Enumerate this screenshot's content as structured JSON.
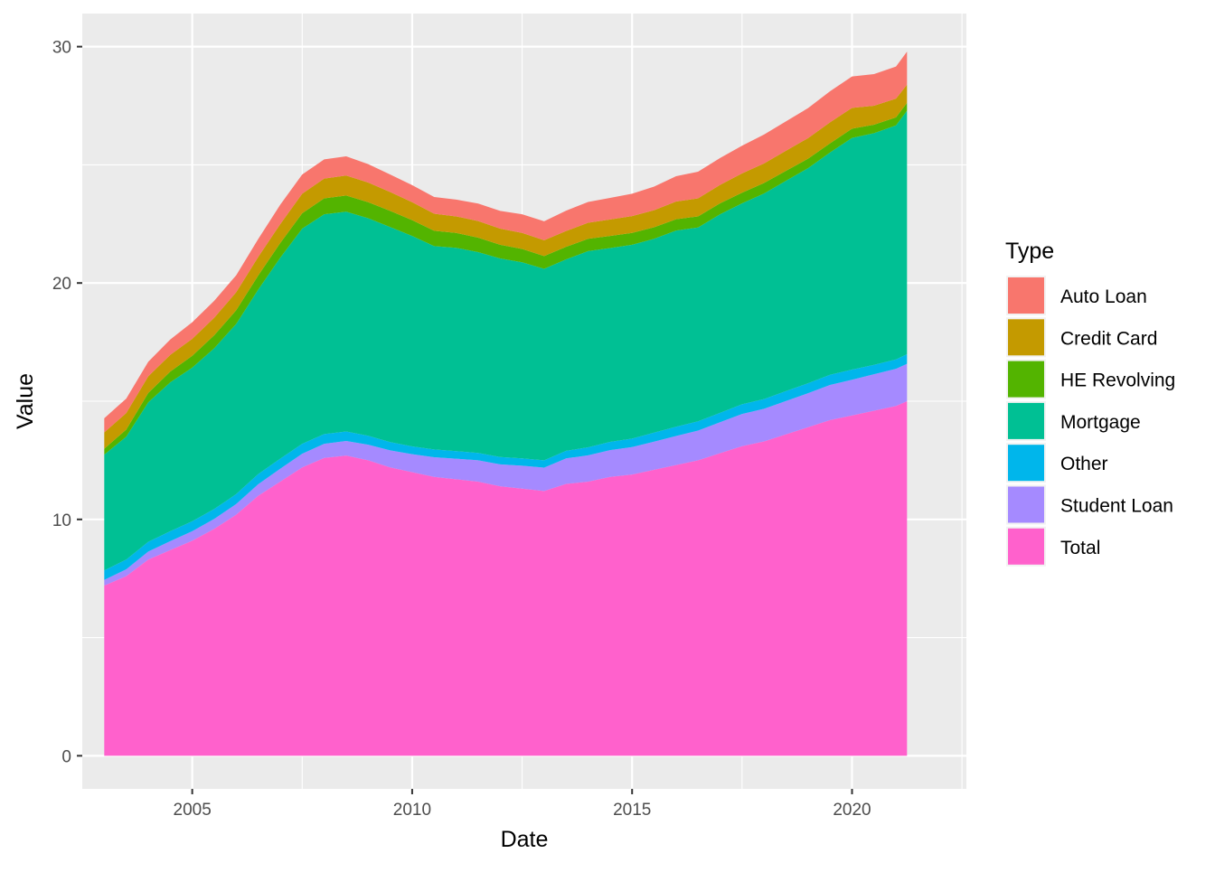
{
  "chart_data": {
    "type": "area",
    "stacked": true,
    "xlabel": "Date",
    "ylabel": "Value",
    "xlim": [
      2002.5,
      2022.6
    ],
    "ylim": [
      -1.4,
      31.4
    ],
    "x_ticks": [
      2005,
      2010,
      2015,
      2020
    ],
    "x_tick_labels": [
      "2005",
      "2010",
      "2015",
      "2020"
    ],
    "y_ticks": [
      0,
      10,
      20,
      30
    ],
    "y_tick_labels": [
      "0",
      "10",
      "20",
      "30"
    ],
    "grid": true,
    "background": "#ebebeb",
    "legend": {
      "title": "Type",
      "position": "right"
    },
    "x": [
      2003.0,
      2003.5,
      2004.0,
      2004.5,
      2005.0,
      2005.5,
      2006.0,
      2006.5,
      2007.0,
      2007.5,
      2008.0,
      2008.5,
      2009.0,
      2009.5,
      2010.0,
      2010.5,
      2011.0,
      2011.5,
      2012.0,
      2012.5,
      2013.0,
      2013.5,
      2014.0,
      2014.5,
      2015.0,
      2015.5,
      2016.0,
      2016.5,
      2017.0,
      2017.5,
      2018.0,
      2018.5,
      2019.0,
      2019.5,
      2020.0,
      2020.5,
      2021.0,
      2021.25
    ],
    "series": [
      {
        "name": "Total",
        "color": "#FF61CC",
        "values": [
          7.2,
          7.6,
          8.3,
          8.7,
          9.1,
          9.6,
          10.2,
          11.0,
          11.6,
          12.2,
          12.6,
          12.7,
          12.5,
          12.2,
          12.0,
          11.8,
          11.7,
          11.6,
          11.4,
          11.3,
          11.2,
          11.5,
          11.6,
          11.8,
          11.9,
          12.1,
          12.3,
          12.5,
          12.8,
          13.1,
          13.3,
          13.6,
          13.9,
          14.2,
          14.4,
          14.6,
          14.8,
          15.0
        ]
      },
      {
        "name": "Student Loan",
        "color": "#A58AFF",
        "values": [
          0.24,
          0.29,
          0.34,
          0.38,
          0.4,
          0.42,
          0.45,
          0.49,
          0.54,
          0.58,
          0.6,
          0.62,
          0.66,
          0.72,
          0.76,
          0.83,
          0.87,
          0.9,
          0.93,
          0.97,
          0.99,
          1.08,
          1.11,
          1.13,
          1.16,
          1.19,
          1.23,
          1.26,
          1.31,
          1.36,
          1.38,
          1.41,
          1.44,
          1.49,
          1.51,
          1.54,
          1.57,
          1.58
        ]
      },
      {
        "name": "Other",
        "color": "#00B6EB",
        "values": [
          0.4,
          0.41,
          0.41,
          0.42,
          0.42,
          0.42,
          0.42,
          0.43,
          0.43,
          0.42,
          0.41,
          0.4,
          0.38,
          0.35,
          0.33,
          0.33,
          0.32,
          0.31,
          0.31,
          0.31,
          0.31,
          0.32,
          0.34,
          0.35,
          0.36,
          0.38,
          0.39,
          0.39,
          0.4,
          0.41,
          0.41,
          0.42,
          0.42,
          0.43,
          0.43,
          0.4,
          0.4,
          0.41
        ]
      },
      {
        "name": "Mortgage",
        "color": "#00C094",
        "values": [
          4.9,
          5.2,
          5.9,
          6.3,
          6.5,
          6.8,
          7.2,
          7.8,
          8.5,
          9.1,
          9.3,
          9.3,
          9.2,
          9.1,
          8.9,
          8.6,
          8.6,
          8.5,
          8.4,
          8.3,
          8.1,
          8.1,
          8.3,
          8.2,
          8.2,
          8.2,
          8.3,
          8.2,
          8.4,
          8.5,
          8.7,
          8.9,
          9.1,
          9.4,
          9.8,
          9.8,
          9.9,
          10.3
        ]
      },
      {
        "name": "HE Revolving",
        "color": "#53B400",
        "values": [
          0.25,
          0.3,
          0.4,
          0.45,
          0.5,
          0.55,
          0.58,
          0.6,
          0.62,
          0.65,
          0.67,
          0.68,
          0.68,
          0.68,
          0.67,
          0.65,
          0.63,
          0.61,
          0.58,
          0.56,
          0.54,
          0.53,
          0.52,
          0.51,
          0.5,
          0.49,
          0.48,
          0.47,
          0.46,
          0.45,
          0.44,
          0.42,
          0.4,
          0.39,
          0.39,
          0.36,
          0.34,
          0.33
        ]
      },
      {
        "name": "Credit Card",
        "color": "#C49A00",
        "values": [
          0.69,
          0.7,
          0.7,
          0.71,
          0.72,
          0.74,
          0.76,
          0.78,
          0.8,
          0.83,
          0.84,
          0.85,
          0.83,
          0.8,
          0.76,
          0.72,
          0.7,
          0.7,
          0.68,
          0.68,
          0.67,
          0.67,
          0.68,
          0.7,
          0.71,
          0.72,
          0.75,
          0.76,
          0.78,
          0.82,
          0.83,
          0.85,
          0.87,
          0.89,
          0.88,
          0.8,
          0.79,
          0.77
        ]
      },
      {
        "name": "Auto Loan",
        "color": "#F8766D",
        "values": [
          0.6,
          0.61,
          0.62,
          0.65,
          0.7,
          0.72,
          0.72,
          0.76,
          0.82,
          0.81,
          0.81,
          0.81,
          0.78,
          0.74,
          0.72,
          0.71,
          0.71,
          0.74,
          0.75,
          0.79,
          0.8,
          0.86,
          0.88,
          0.91,
          0.95,
          1.0,
          1.07,
          1.13,
          1.14,
          1.17,
          1.22,
          1.24,
          1.27,
          1.31,
          1.33,
          1.34,
          1.36,
          1.4
        ]
      }
    ],
    "legend_order": [
      "Auto Loan",
      "Credit Card",
      "HE Revolving",
      "Mortgage",
      "Other",
      "Student Loan",
      "Total"
    ]
  }
}
